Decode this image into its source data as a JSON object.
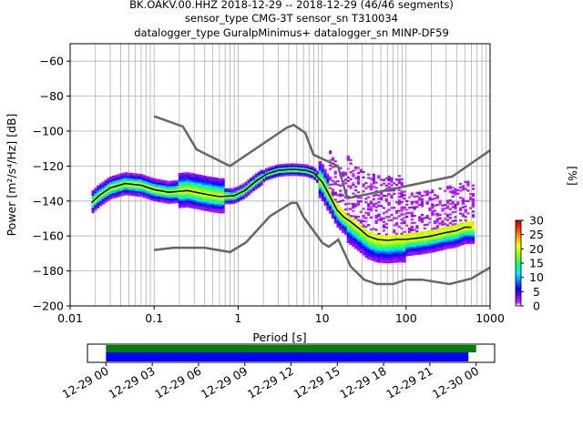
{
  "title_lines": [
    "BK.OAKV.00.HHZ   2018-12-29 -- 2018-12-29  (46/46 segments)",
    "sensor_type CMG-3T sensor_sn T310034",
    "datalogger_type GuralpMinimus+ datalogger_sn MINP-DF59"
  ],
  "colors": {
    "model_curves": "#666666",
    "mean_curve": "#000000",
    "grid": "#b0b0b0",
    "timeline_green": "#008000",
    "timeline_blue": "#0000ff"
  },
  "chart_data": [
    {
      "type": "heatmap",
      "subtype": "probabilistic power spectral density",
      "xlabel": "Period [s]",
      "ylabel": "Power [m²/s⁴/Hz] [dB]",
      "xscale": "log",
      "xlim": [
        0.01,
        1000
      ],
      "ylim": [
        -200,
        -50
      ],
      "x_ticks": [
        {
          "value": 0.01,
          "label": "0.01"
        },
        {
          "value": 0.1,
          "label": "0.1"
        },
        {
          "value": 1,
          "label": "1"
        },
        {
          "value": 10,
          "label": "10"
        },
        {
          "value": 100,
          "label": "100"
        },
        {
          "value": 1000,
          "label": "1000"
        }
      ],
      "y_ticks": [
        {
          "value": -60,
          "label": "−60"
        },
        {
          "value": -80,
          "label": "−80"
        },
        {
          "value": -100,
          "label": "−100"
        },
        {
          "value": -120,
          "label": "−120"
        },
        {
          "value": -140,
          "label": "−140"
        },
        {
          "value": -160,
          "label": "−160"
        },
        {
          "value": -180,
          "label": "−180"
        },
        {
          "value": -200,
          "label": "−200"
        }
      ],
      "grid": true,
      "colorbar": {
        "label": "[%]",
        "range": [
          0,
          30
        ],
        "ticks": [
          {
            "value": 0,
            "label": "0"
          },
          {
            "value": 5,
            "label": "5"
          },
          {
            "value": 10,
            "label": "10"
          },
          {
            "value": 15,
            "label": "15"
          },
          {
            "value": 20,
            "label": "20"
          },
          {
            "value": 25,
            "label": "25"
          },
          {
            "value": 30,
            "label": "30"
          }
        ]
      },
      "new_high_noise_model": [
        [
          0.1,
          -91.5
        ],
        [
          0.22,
          -97.4
        ],
        [
          0.32,
          -110.5
        ],
        [
          0.8,
          -120
        ],
        [
          3.8,
          -98
        ],
        [
          4.6,
          -96.5
        ],
        [
          6.3,
          -101
        ],
        [
          7.9,
          -113.5
        ],
        [
          15.4,
          -120
        ],
        [
          20,
          -138.5
        ],
        [
          354.8,
          -126
        ],
        [
          1000,
          -111
        ]
      ],
      "new_low_noise_model": [
        [
          0.1,
          -168
        ],
        [
          0.17,
          -166.7
        ],
        [
          0.4,
          -166.7
        ],
        [
          0.8,
          -169.2
        ],
        [
          1.24,
          -163.7
        ],
        [
          2.4,
          -148.6
        ],
        [
          4.3,
          -141.1
        ],
        [
          5,
          -141.1
        ],
        [
          6,
          -149
        ],
        [
          10,
          -163.8
        ],
        [
          12,
          -166.2
        ],
        [
          15.6,
          -162.1
        ],
        [
          21.9,
          -177.5
        ],
        [
          31.6,
          -185
        ],
        [
          45,
          -187.5
        ],
        [
          70,
          -187.5
        ],
        [
          101,
          -185
        ],
        [
          154,
          -185
        ],
        [
          328,
          -187.5
        ],
        [
          600,
          -184.4
        ],
        [
          1000,
          -178
        ]
      ],
      "mean_psd": [
        [
          0.018,
          -141
        ],
        [
          0.022,
          -137
        ],
        [
          0.03,
          -132.5
        ],
        [
          0.045,
          -130
        ],
        [
          0.07,
          -131
        ],
        [
          0.1,
          -133.5
        ],
        [
          0.15,
          -135
        ],
        [
          0.25,
          -134
        ],
        [
          0.4,
          -136
        ],
        [
          0.6,
          -137.5
        ],
        [
          0.9,
          -137
        ],
        [
          1.2,
          -134
        ],
        [
          1.6,
          -129
        ],
        [
          2.2,
          -124.5
        ],
        [
          3,
          -122.5
        ],
        [
          4,
          -122
        ],
        [
          5,
          -122
        ],
        [
          6.5,
          -122.5
        ],
        [
          8,
          -124
        ],
        [
          10,
          -129
        ],
        [
          12,
          -136
        ],
        [
          15,
          -145
        ],
        [
          18,
          -149
        ],
        [
          22,
          -152
        ],
        [
          28,
          -156
        ],
        [
          35,
          -160
        ],
        [
          45,
          -162
        ],
        [
          60,
          -162.5
        ],
        [
          80,
          -162
        ],
        [
          100,
          -162
        ],
        [
          150,
          -161
        ],
        [
          200,
          -160
        ],
        [
          300,
          -158
        ],
        [
          400,
          -157
        ],
        [
          500,
          -155
        ],
        [
          600,
          -155
        ]
      ]
    },
    {
      "type": "bar",
      "subtype": "data coverage timeline",
      "x_ticks": [
        {
          "hours": 0,
          "label": "12-29 00"
        },
        {
          "hours": 3,
          "label": "12-29 03"
        },
        {
          "hours": 6,
          "label": "12-29 06"
        },
        {
          "hours": 9,
          "label": "12-29 09"
        },
        {
          "hours": 12,
          "label": "12-29 12"
        },
        {
          "hours": 15,
          "label": "12-29 15"
        },
        {
          "hours": 18,
          "label": "12-29 18"
        },
        {
          "hours": 21,
          "label": "12-29 21"
        },
        {
          "hours": 24,
          "label": "12-30 00"
        }
      ],
      "xlim_hours": [
        -1.2,
        25.2
      ],
      "green_span_hours": [
        0,
        24
      ],
      "blue_span_hours": [
        0,
        23.5
      ]
    }
  ]
}
